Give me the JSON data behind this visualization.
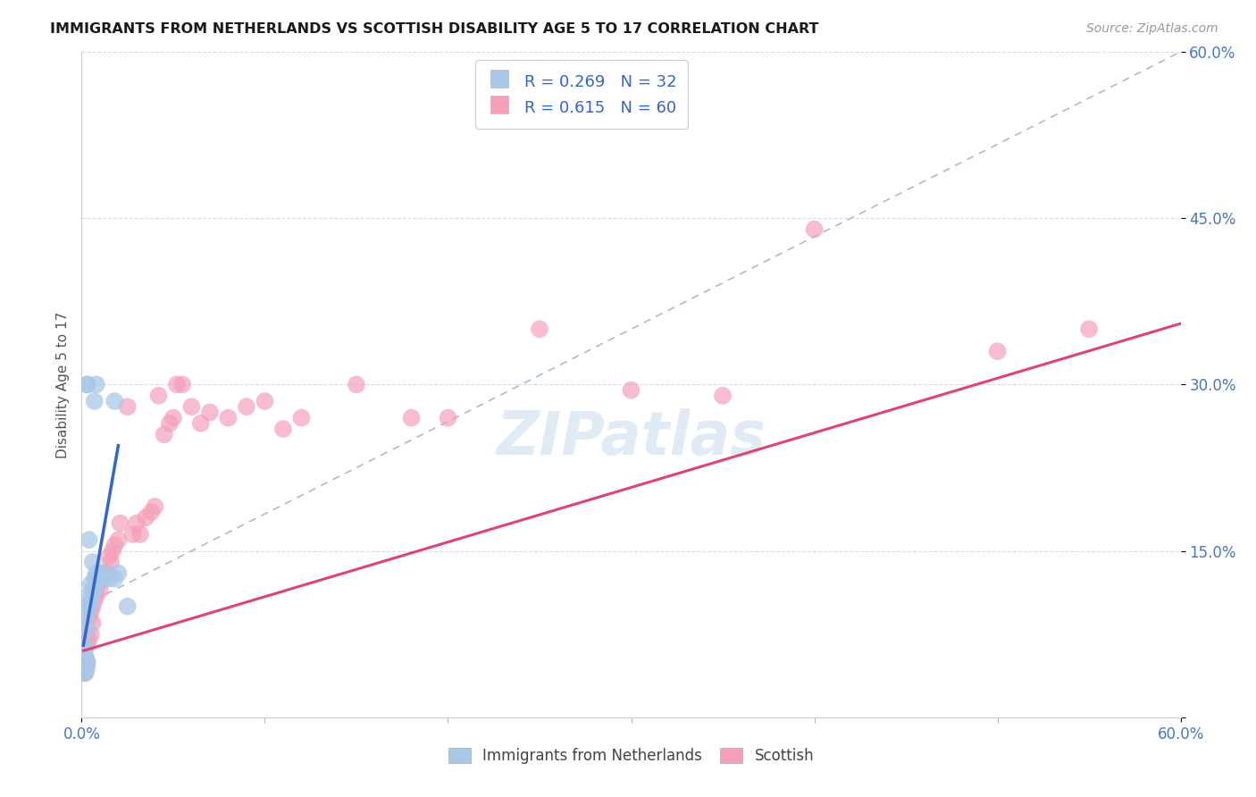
{
  "title": "IMMIGRANTS FROM NETHERLANDS VS SCOTTISH DISABILITY AGE 5 TO 17 CORRELATION CHART",
  "source": "Source: ZipAtlas.com",
  "ylabel": "Disability Age 5 to 17",
  "ytick_vals": [
    0,
    0.15,
    0.3,
    0.45,
    0.6
  ],
  "xlim": [
    0,
    0.6
  ],
  "ylim": [
    0,
    0.6
  ],
  "legend1_R": "0.269",
  "legend1_N": "32",
  "legend2_R": "0.615",
  "legend2_N": "60",
  "legend_label1": "Immigrants from Netherlands",
  "legend_label2": "Scottish",
  "blue_color": "#a8c8e8",
  "pink_color": "#f4a0b8",
  "blue_line_color": "#3366cc",
  "pink_line_color": "#dd4477",
  "blue_scatter": [
    [
      0.001,
      0.04
    ],
    [
      0.001,
      0.055
    ],
    [
      0.001,
      0.06
    ],
    [
      0.002,
      0.04
    ],
    [
      0.002,
      0.055
    ],
    [
      0.002,
      0.065
    ],
    [
      0.002,
      0.09
    ],
    [
      0.003,
      0.045
    ],
    [
      0.003,
      0.05
    ],
    [
      0.003,
      0.08
    ],
    [
      0.003,
      0.095
    ],
    [
      0.003,
      0.3
    ],
    [
      0.004,
      0.1
    ],
    [
      0.004,
      0.11
    ],
    [
      0.004,
      0.16
    ],
    [
      0.005,
      0.105
    ],
    [
      0.005,
      0.12
    ],
    [
      0.006,
      0.115
    ],
    [
      0.006,
      0.14
    ],
    [
      0.007,
      0.115
    ],
    [
      0.007,
      0.125
    ],
    [
      0.007,
      0.285
    ],
    [
      0.008,
      0.13
    ],
    [
      0.01,
      0.125
    ],
    [
      0.012,
      0.13
    ],
    [
      0.015,
      0.125
    ],
    [
      0.018,
      0.125
    ],
    [
      0.018,
      0.285
    ],
    [
      0.02,
      0.13
    ],
    [
      0.025,
      0.1
    ],
    [
      0.003,
      0.3
    ],
    [
      0.008,
      0.3
    ]
  ],
  "pink_scatter": [
    [
      0.001,
      0.04
    ],
    [
      0.001,
      0.05
    ],
    [
      0.001,
      0.06
    ],
    [
      0.002,
      0.04
    ],
    [
      0.002,
      0.055
    ],
    [
      0.002,
      0.065
    ],
    [
      0.003,
      0.05
    ],
    [
      0.003,
      0.065
    ],
    [
      0.003,
      0.08
    ],
    [
      0.004,
      0.07
    ],
    [
      0.004,
      0.09
    ],
    [
      0.005,
      0.075
    ],
    [
      0.005,
      0.095
    ],
    [
      0.006,
      0.085
    ],
    [
      0.006,
      0.1
    ],
    [
      0.007,
      0.105
    ],
    [
      0.008,
      0.11
    ],
    [
      0.007,
      0.115
    ],
    [
      0.009,
      0.12
    ],
    [
      0.01,
      0.115
    ],
    [
      0.011,
      0.13
    ],
    [
      0.012,
      0.125
    ],
    [
      0.013,
      0.13
    ],
    [
      0.014,
      0.13
    ],
    [
      0.015,
      0.145
    ],
    [
      0.016,
      0.14
    ],
    [
      0.017,
      0.15
    ],
    [
      0.018,
      0.155
    ],
    [
      0.02,
      0.16
    ],
    [
      0.021,
      0.175
    ],
    [
      0.025,
      0.28
    ],
    [
      0.03,
      0.175
    ],
    [
      0.028,
      0.165
    ],
    [
      0.032,
      0.165
    ],
    [
      0.035,
      0.18
    ],
    [
      0.04,
      0.19
    ],
    [
      0.038,
      0.185
    ],
    [
      0.045,
      0.255
    ],
    [
      0.048,
      0.265
    ],
    [
      0.05,
      0.27
    ],
    [
      0.042,
      0.29
    ],
    [
      0.052,
      0.3
    ],
    [
      0.055,
      0.3
    ],
    [
      0.06,
      0.28
    ],
    [
      0.065,
      0.265
    ],
    [
      0.07,
      0.275
    ],
    [
      0.08,
      0.27
    ],
    [
      0.09,
      0.28
    ],
    [
      0.1,
      0.285
    ],
    [
      0.11,
      0.26
    ],
    [
      0.12,
      0.27
    ],
    [
      0.15,
      0.3
    ],
    [
      0.18,
      0.27
    ],
    [
      0.2,
      0.27
    ],
    [
      0.25,
      0.35
    ],
    [
      0.3,
      0.295
    ],
    [
      0.35,
      0.29
    ],
    [
      0.4,
      0.44
    ],
    [
      0.5,
      0.33
    ],
    [
      0.55,
      0.35
    ]
  ],
  "blue_line_x": [
    0.001,
    0.02
  ],
  "blue_line_y": [
    0.065,
    0.245
  ],
  "pink_line_x": [
    0.001,
    0.6
  ],
  "pink_line_y": [
    0.06,
    0.355
  ],
  "dashed_line_x": [
    0.0,
    0.6
  ],
  "dashed_line_y": [
    0.1,
    0.6
  ],
  "watermark": "ZIPatlas",
  "bg_color": "#ffffff",
  "grid_color": "#d4dce8",
  "title_color": "#1a1a1a",
  "axis_label_color": "#4477cc"
}
